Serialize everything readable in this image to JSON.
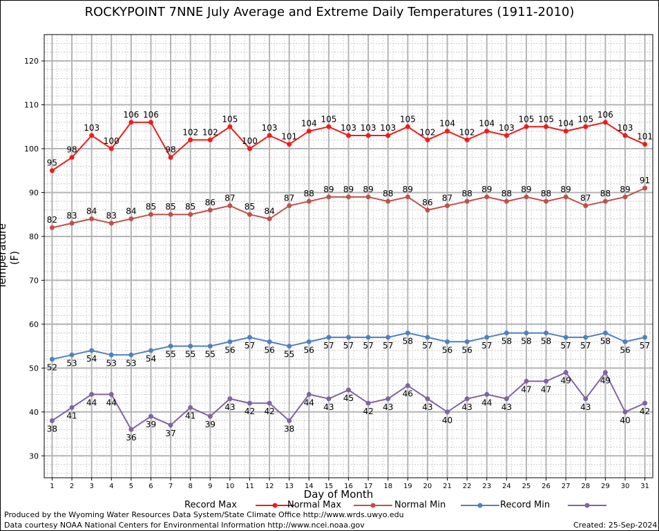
{
  "page": {
    "title": "ROCKYPOINT 7NNE July Average and Extreme Daily Temperatures (1911-2010)",
    "footer_left_1": "Produced by the Wyoming Water Resources Data System/State Climate Office http://www.wrds.uwyo.edu",
    "footer_left_2": "Data courtesy NOAA National Centers for Environmental Information http://www.ncei.noaa.gov",
    "footer_right": "Created:  25-Sep-2024"
  },
  "chart_data": {
    "type": "line",
    "title": "ROCKYPOINT 7NNE July Average and Extreme Daily Temperatures (1911-2010)",
    "xlabel": "Day of Month",
    "ylabel": "Temperature (F)",
    "x": [
      1,
      2,
      3,
      4,
      5,
      6,
      7,
      8,
      9,
      10,
      11,
      12,
      13,
      14,
      15,
      16,
      17,
      18,
      19,
      20,
      21,
      22,
      23,
      24,
      25,
      26,
      27,
      28,
      29,
      30,
      31
    ],
    "xlim": [
      0.6,
      31.4
    ],
    "ylim": [
      25,
      126
    ],
    "yticks": [
      30,
      40,
      50,
      60,
      70,
      80,
      90,
      100,
      110,
      120
    ],
    "grid": true,
    "legend_position": "bottom",
    "series": [
      {
        "name": "Record Max",
        "color": "#ee1c1c",
        "label_pos": "above",
        "values": [
          95,
          98,
          103,
          100,
          106,
          106,
          98,
          102,
          102,
          105,
          100,
          103,
          101,
          104,
          105,
          103,
          103,
          103,
          105,
          102,
          104,
          102,
          104,
          103,
          105,
          105,
          104,
          105,
          106,
          103,
          101
        ]
      },
      {
        "name": "Normal Max",
        "color": "#c0504d",
        "label_pos": "above",
        "values": [
          82,
          83,
          84,
          83,
          84,
          85,
          85,
          85,
          86,
          87,
          85,
          84,
          87,
          88,
          89,
          89,
          89,
          88,
          89,
          86,
          87,
          88,
          89,
          88,
          89,
          88,
          89,
          87,
          88,
          89,
          91
        ]
      },
      {
        "name": "Normal Min",
        "color": "#4f81bd",
        "label_pos": "below",
        "values": [
          52,
          53,
          54,
          53,
          53,
          54,
          55,
          55,
          55,
          56,
          57,
          56,
          55,
          56,
          57,
          57,
          57,
          57,
          58,
          57,
          56,
          56,
          57,
          58,
          58,
          58,
          57,
          57,
          58,
          56,
          57
        ]
      },
      {
        "name": "Record Min",
        "color": "#8064a2",
        "label_pos": "below",
        "values": [
          38,
          41,
          44,
          44,
          36,
          39,
          37,
          41,
          39,
          43,
          42,
          42,
          38,
          44,
          43,
          45,
          42,
          43,
          46,
          43,
          40,
          43,
          44,
          43,
          47,
          47,
          49,
          43,
          49,
          40,
          42
        ]
      }
    ]
  }
}
